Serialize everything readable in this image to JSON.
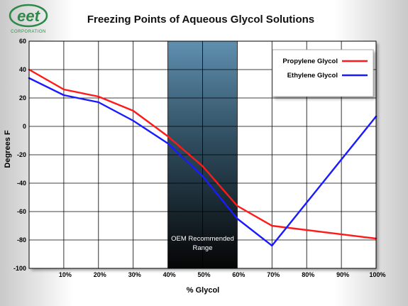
{
  "logo": {
    "brand": "eet",
    "subtitle": "CORPORATION"
  },
  "chart_data": {
    "type": "line",
    "title": "Freezing Points of Aqueous Glycol Solutions",
    "xlabel": "% Glycol",
    "ylabel": "Degrees F",
    "xlim": [
      0,
      100
    ],
    "ylim": [
      -100,
      60
    ],
    "x_ticks": [
      10,
      20,
      30,
      40,
      50,
      60,
      70,
      80,
      90,
      100
    ],
    "x_tick_labels": [
      "10%",
      "20%",
      "30%",
      "40%",
      "50%",
      "60%",
      "70%",
      "80%",
      "90%",
      "100%"
    ],
    "y_ticks": [
      60,
      40,
      20,
      0,
      -20,
      -40,
      -60,
      -80,
      -100
    ],
    "grid": true,
    "legend_position": "top-right",
    "series": [
      {
        "name": "Propylene Glycol",
        "color": "#ff1a1a",
        "x": [
          0,
          10,
          20,
          30,
          40,
          50,
          60,
          70,
          100
        ],
        "y": [
          40,
          26,
          21,
          11,
          -7,
          -28,
          -56,
          -70,
          -79
        ]
      },
      {
        "name": "Ethylene Glycol",
        "color": "#1a1aff",
        "x": [
          0,
          10,
          20,
          30,
          40,
          50,
          60,
          70,
          100
        ],
        "y": [
          34,
          22,
          17,
          4,
          -12,
          -35,
          -65,
          -84,
          7
        ]
      }
    ],
    "annotation": {
      "text_lines": [
        "OEM Recommended",
        "Range"
      ],
      "x_range": [
        40,
        60
      ]
    }
  }
}
